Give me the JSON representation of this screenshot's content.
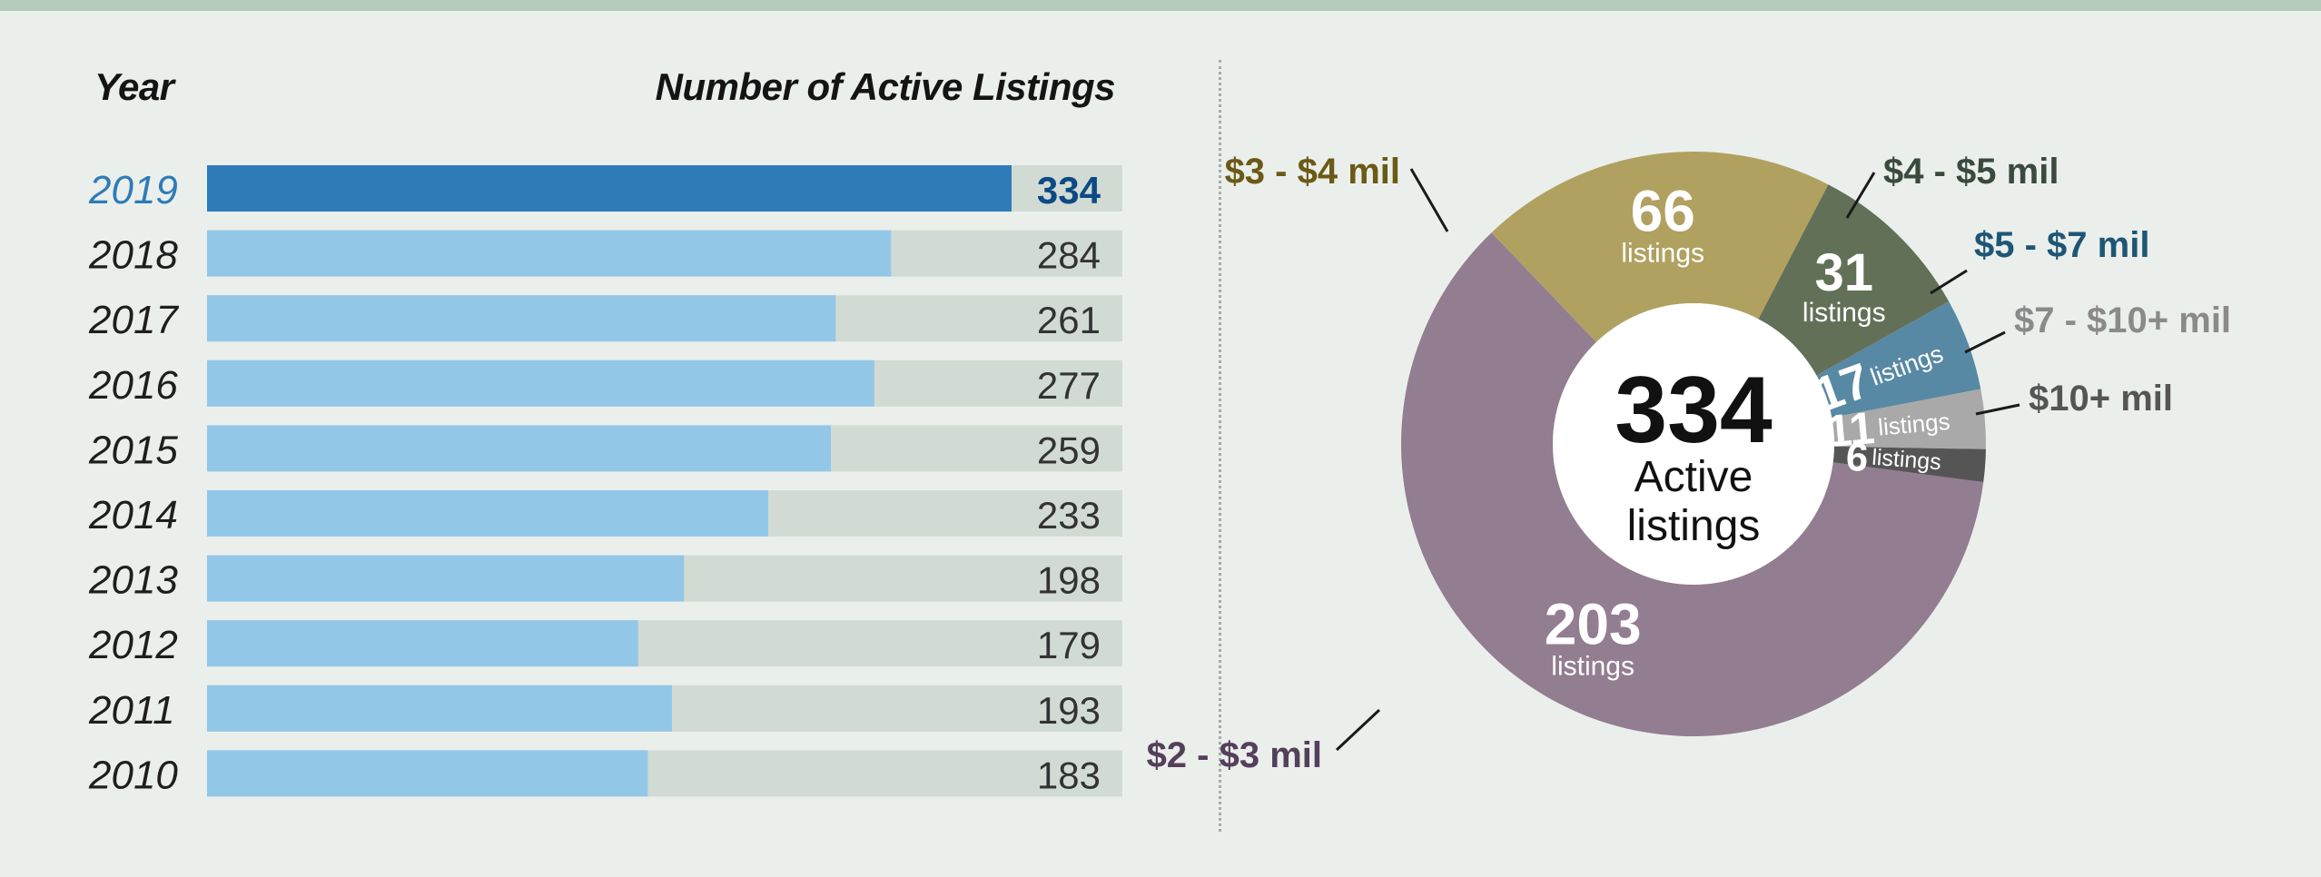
{
  "header": {
    "year_label": "Year",
    "count_label": "Number of Active Listings"
  },
  "colors": {
    "highlight_bar": "#2e7bb8",
    "bar": "#93c7e8",
    "track": "#d1dbd3",
    "highlight_text": "#0d4a85",
    "text": "#1e1e1e"
  },
  "chart_data": [
    {
      "type": "bar",
      "orientation": "horizontal",
      "categories": [
        "2019",
        "2018",
        "2017",
        "2016",
        "2015",
        "2014",
        "2013",
        "2012",
        "2011",
        "2010"
      ],
      "values": [
        334,
        284,
        261,
        277,
        259,
        233,
        198,
        179,
        193,
        183
      ],
      "highlight": "2019",
      "xlim": [
        0,
        380
      ]
    },
    {
      "type": "pie",
      "donut": true,
      "center_value": "334",
      "center_label": [
        "Active",
        "listings"
      ],
      "slices": [
        {
          "label": "$2 - $3 mil",
          "value": 203,
          "unit": "listings",
          "color": "#937d91",
          "label_color": "#54405a",
          "value_color": "#ffffff"
        },
        {
          "label": "$3 - $4 mil",
          "value": 66,
          "unit": "listings",
          "color": "#b1a161",
          "label_color": "#6b5a16",
          "value_color": "#ffffff"
        },
        {
          "label": "$4 - $5 mil",
          "value": 31,
          "unit": "listings",
          "color": "#637058",
          "label_color": "#3a4a3d",
          "value_color": "#ffffff"
        },
        {
          "label": "$5 - $7 mil",
          "value": 17,
          "unit": "listings",
          "color": "#5889a4",
          "label_color": "#1e5675",
          "value_color": "#ffffff"
        },
        {
          "label": "$7 - $10+ mil",
          "value": 11,
          "unit": "listings",
          "color": "#a9a9a9",
          "label_color": "#8a8a8a",
          "value_color": "#ffffff"
        },
        {
          "label": "$10+ mil",
          "value": 6,
          "unit": "listings",
          "color": "#555555",
          "label_color": "#555555",
          "value_color": "#ffffff"
        }
      ]
    }
  ]
}
